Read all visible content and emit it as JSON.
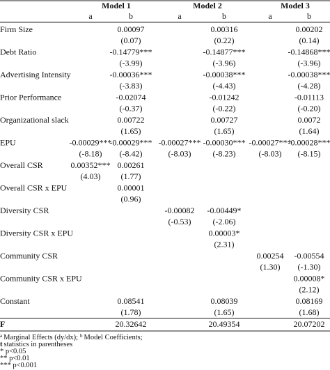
{
  "header": {
    "models": [
      "Model 1",
      "Model 2",
      "Model 3"
    ],
    "subcols": [
      "a",
      "b",
      "a",
      "b",
      "a",
      "b"
    ]
  },
  "rows": [
    {
      "label": "Firm Size",
      "cells": [
        null,
        "0.00097",
        null,
        "0.00316",
        null,
        "0.00202"
      ],
      "t": [
        null,
        "(0.07)",
        null,
        "(0.22)",
        null,
        "(0.14)"
      ]
    },
    {
      "label": "Debt Ratio",
      "cells": [
        null,
        "-0.14779***",
        null,
        "-0.14877***",
        null,
        "-0.14868***"
      ],
      "t": [
        null,
        "(-3.99)",
        null,
        "(-3.96)",
        null,
        "(-3.96)"
      ]
    },
    {
      "label": "Advertising Intensity",
      "cells": [
        null,
        "-0.00036***",
        null,
        "-0.00038***",
        null,
        "-0.00038***"
      ],
      "t": [
        null,
        "(-3.83)",
        null,
        "(-4.43)",
        null,
        "(-4.28)"
      ]
    },
    {
      "label": "Prior Performance",
      "cells": [
        null,
        "-0.02074",
        null,
        "-0.01242",
        null,
        "-0.01113"
      ],
      "t": [
        null,
        "(-0.37)",
        null,
        "(-0.22)",
        null,
        "(-0.20)"
      ]
    },
    {
      "label": "Organizational slack",
      "cells": [
        null,
        "0.00722",
        null,
        "0.00727",
        null,
        "0.0072"
      ],
      "t": [
        null,
        "(1.65)",
        null,
        "(1.65)",
        null,
        "(1.64)"
      ]
    },
    {
      "label": "EPU",
      "cells": [
        "-0.00029***",
        "-0.00029***",
        "-0.00027***",
        "-0.00030***",
        "-0.00027***",
        "-0.00028***"
      ],
      "t": [
        "(-8.18)",
        "(-8.42)",
        "(-8.03)",
        "(-8.23)",
        "(-8.03)",
        "(-8.15)"
      ]
    },
    {
      "label": "Overall CSR",
      "cells": [
        "0.00352***",
        "0.00261",
        null,
        null,
        null,
        null
      ],
      "t": [
        "(4.03)",
        "(1.77)",
        null,
        null,
        null,
        null
      ]
    },
    {
      "label": "Overall CSR x EPU",
      "cells": [
        null,
        "0.00001",
        null,
        null,
        null,
        null
      ],
      "t": [
        null,
        "(0.96)",
        null,
        null,
        null,
        null
      ]
    },
    {
      "label": "Diversity CSR",
      "cells": [
        null,
        null,
        "-0.00082",
        "-0.00449*",
        null,
        null
      ],
      "t": [
        null,
        null,
        "(-0.53)",
        "(-2.06)",
        null,
        null
      ]
    },
    {
      "label": "Diversity CSR x EPU",
      "cells": [
        null,
        null,
        null,
        "0.00003*",
        null,
        null
      ],
      "t": [
        null,
        null,
        null,
        "(2.31)",
        null,
        null
      ]
    },
    {
      "label": "Community CSR",
      "cells": [
        null,
        null,
        null,
        null,
        "0.00254",
        "-0.00554"
      ],
      "t": [
        null,
        null,
        null,
        null,
        "(1.30)",
        "(-1.30)"
      ]
    },
    {
      "label": "Community CSR x EPU",
      "cells": [
        null,
        null,
        null,
        null,
        null,
        "0.00008*"
      ],
      "t": [
        null,
        null,
        null,
        null,
        null,
        "(2.12)"
      ]
    },
    {
      "label": "Constant",
      "cells": [
        null,
        "0.08541",
        null,
        "0.08039",
        null,
        "0.08169"
      ],
      "t": [
        null,
        "(1.78)",
        null,
        "(1.65)",
        null,
        "(1.68)"
      ]
    }
  ],
  "f_row": {
    "label": "F",
    "cells": [
      null,
      "20.32642",
      null,
      "20.49354",
      null,
      "20.07202"
    ]
  },
  "notes": [
    [
      {
        "text": "a",
        "style": "sup"
      },
      {
        "text": "Marginal Effects (dy/dx);",
        "style": "plain"
      },
      {
        "text": "b",
        "style": "sup"
      },
      {
        "text": "Model Coefficients;",
        "style": "plain"
      }
    ],
    [
      {
        "text": "t",
        "style": "bold"
      },
      {
        "text": "statistics in parentheses",
        "style": "plain"
      }
    ],
    [
      {
        "text": "* p<0.05",
        "style": "plain"
      }
    ],
    [
      {
        "text": "** p<0.01",
        "style": "plain"
      }
    ],
    [
      {
        "text": "*** p<0.001",
        "style": "plain"
      }
    ]
  ]
}
